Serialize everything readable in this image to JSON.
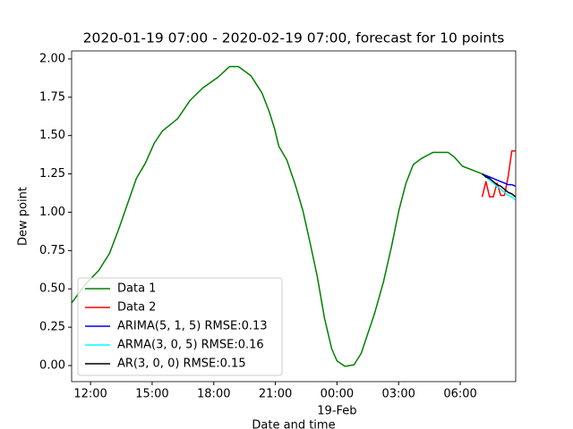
{
  "chart_data": {
    "type": "line",
    "title": "2020-01-19 07:00 - 2020-02-19 07:00, forecast for 10 points",
    "x_label": "Date and time",
    "y_label": "Dew point",
    "x_date_label": "19-Feb",
    "xlim": [
      -12.92,
      8.7
    ],
    "ylim": [
      -0.105,
      2.052
    ],
    "xticks": [
      {
        "value": -12,
        "label": "12:00"
      },
      {
        "value": -9,
        "label": "15:00"
      },
      {
        "value": -6,
        "label": "18:00"
      },
      {
        "value": -3,
        "label": "21:00"
      },
      {
        "value": 0,
        "label": "00:00"
      },
      {
        "value": 3,
        "label": "03:00"
      },
      {
        "value": 6,
        "label": "06:00"
      }
    ],
    "yticks": [
      {
        "value": 0,
        "label": "0.00"
      },
      {
        "value": 0.25,
        "label": "0.25"
      },
      {
        "value": 0.5,
        "label": "0.50"
      },
      {
        "value": 0.75,
        "label": "0.75"
      },
      {
        "value": 1,
        "label": "1.00"
      },
      {
        "value": 1.25,
        "label": "1.25"
      },
      {
        "value": 1.5,
        "label": "1.50"
      },
      {
        "value": 1.75,
        "label": "1.75"
      },
      {
        "value": 2,
        "label": "2.00"
      }
    ],
    "legend": "lower left",
    "series": [
      {
        "name": "Data 1",
        "color": "#008000",
        "x": [
          -12.91,
          -12.25,
          -11.6,
          -11.08,
          -10.6,
          -10.16,
          -9.77,
          -9.33,
          -8.9,
          -8.5,
          -7.76,
          -7.15,
          -6.54,
          -5.8,
          -5.23,
          -4.8,
          -4.19,
          -3.66,
          -3.31,
          -3.05,
          -2.83,
          -2.44,
          -2.01,
          -1.66,
          -1.31,
          -0.96,
          -0.61,
          -0.26,
          0,
          0.39,
          0.83,
          1.18,
          1.48,
          1.83,
          2.27,
          2.66,
          3.01,
          3.36,
          3.71,
          4.1,
          4.67,
          5.41,
          5.71,
          6.11,
          6.5,
          7.07
        ],
        "values": [
          0.41,
          0.53,
          0.62,
          0.73,
          0.9,
          1.07,
          1.22,
          1.32,
          1.45,
          1.53,
          1.61,
          1.73,
          1.81,
          1.88,
          1.95,
          1.95,
          1.89,
          1.78,
          1.66,
          1.55,
          1.43,
          1.34,
          1.17,
          1.01,
          0.8,
          0.58,
          0.31,
          0.11,
          0.03,
          -0.005,
          0.005,
          0.08,
          0.2,
          0.34,
          0.55,
          0.78,
          1.01,
          1.19,
          1.31,
          1.35,
          1.39,
          1.39,
          1.36,
          1.3,
          1.28,
          1.25
        ]
      },
      {
        "name": "Data 2",
        "color": "#ff0000",
        "x": [
          7.07,
          7.25,
          7.43,
          7.61,
          7.79,
          7.97,
          8.15,
          8.33,
          8.51,
          8.69
        ],
        "values": [
          1.1,
          1.2,
          1.1,
          1.1,
          1.19,
          1.11,
          1.11,
          1.23,
          1.4,
          1.4
        ]
      },
      {
        "name": "ARIMA(5, 1, 5) RMSE:0.13",
        "color": "#0000ff",
        "x": [
          7.07,
          7.25,
          7.43,
          7.61,
          7.79,
          7.97,
          8.15,
          8.33,
          8.51,
          8.69
        ],
        "values": [
          1.25,
          1.24,
          1.23,
          1.22,
          1.21,
          1.2,
          1.19,
          1.18,
          1.18,
          1.17
        ]
      },
      {
        "name": "ARMA(3, 0, 5) RMSE:0.16",
        "color": "#00ffff",
        "x": [
          7.07,
          7.25,
          7.43,
          7.61,
          7.79,
          7.97,
          8.15,
          8.33,
          8.51,
          8.69
        ],
        "values": [
          1.25,
          1.23,
          1.21,
          1.19,
          1.17,
          1.15,
          1.13,
          1.11,
          1.1,
          1.08
        ]
      },
      {
        "name": "AR(3, 0, 0) RMSE:0.15",
        "color": "#000000",
        "x": [
          7.07,
          7.25,
          7.43,
          7.61,
          7.79,
          7.97,
          8.15,
          8.33,
          8.51,
          8.69
        ],
        "values": [
          1.25,
          1.23,
          1.22,
          1.2,
          1.18,
          1.17,
          1.15,
          1.13,
          1.12,
          1.1
        ]
      }
    ]
  }
}
